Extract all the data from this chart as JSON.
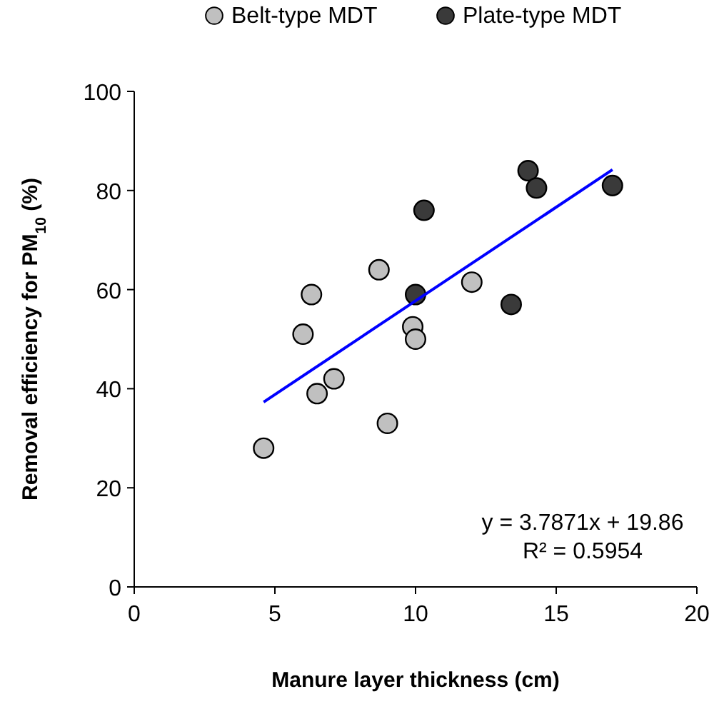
{
  "chart_data": {
    "type": "scatter",
    "xlabel": "Manure layer thickness (cm)",
    "ylabel": "Removal efficiency for PM$_{10}$ (%)",
    "xlim": [
      0,
      20
    ],
    "xticks": [
      0,
      5,
      10,
      15,
      20
    ],
    "ylim": [
      0,
      100
    ],
    "yticks": [
      0,
      20,
      40,
      60,
      80,
      100
    ],
    "legend": "top",
    "marker": "circle",
    "grid": false,
    "series": [
      {
        "name": "Belt-type MDT",
        "color": "#c0c0c0",
        "x": [
          4.6,
          6,
          6.3,
          6.5,
          7.1,
          8.7,
          9,
          9.9,
          10,
          12
        ],
        "values": [
          28,
          51,
          59,
          39,
          42,
          64,
          33,
          52.5,
          50,
          61.5
        ]
      },
      {
        "name": "Plate-type MDT",
        "color": "#3a3a3a",
        "x": [
          10,
          10.3,
          13.4,
          14,
          14.3,
          17
        ],
        "values": [
          59,
          76,
          57,
          84,
          80.5,
          81
        ]
      },
      {
        "type": "line",
        "marker": "none",
        "color": "#0000ff",
        "x": [
          4.6,
          17
        ],
        "values": [
          37.3,
          84.2
        ]
      }
    ],
    "annotations": [
      "y = 3.7871x + 19.86",
      "R² = 0.5954"
    ]
  }
}
